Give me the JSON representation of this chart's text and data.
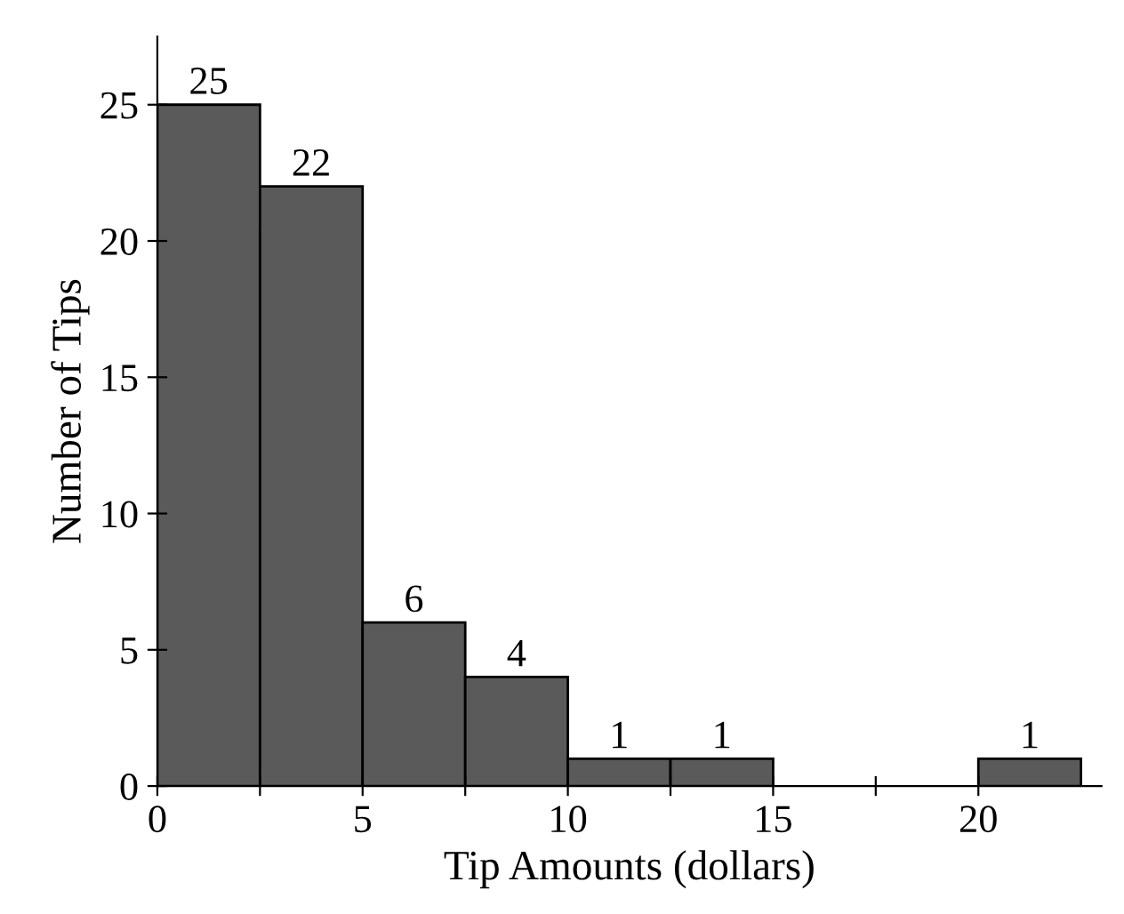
{
  "chart_data": {
    "type": "histogram",
    "xlabel": "Tip Amounts (dollars)",
    "ylabel": "Number of Tips",
    "bins": [
      0,
      2.5,
      5,
      7.5,
      10,
      12.5,
      15,
      17.5,
      20,
      22.5
    ],
    "values": [
      25,
      22,
      6,
      4,
      1,
      1,
      0,
      0,
      1
    ],
    "value_labels": [
      "25",
      "22",
      "6",
      "4",
      "1",
      "1",
      null,
      null,
      "1"
    ],
    "color": "#5a5a5a",
    "xlim": [
      0,
      23
    ],
    "ylim": [
      0,
      27.5
    ],
    "xticks": [
      0,
      {
        "value": 2.5,
        "label": null
      },
      5,
      {
        "value": 7.5,
        "label": null
      },
      10,
      {
        "value": 12.5,
        "label": null
      },
      15,
      {
        "value": 17.5,
        "label": null
      },
      20
    ],
    "yticks": [
      0,
      5,
      10,
      15,
      20,
      25
    ],
    "grid": false,
    "legend": false
  }
}
